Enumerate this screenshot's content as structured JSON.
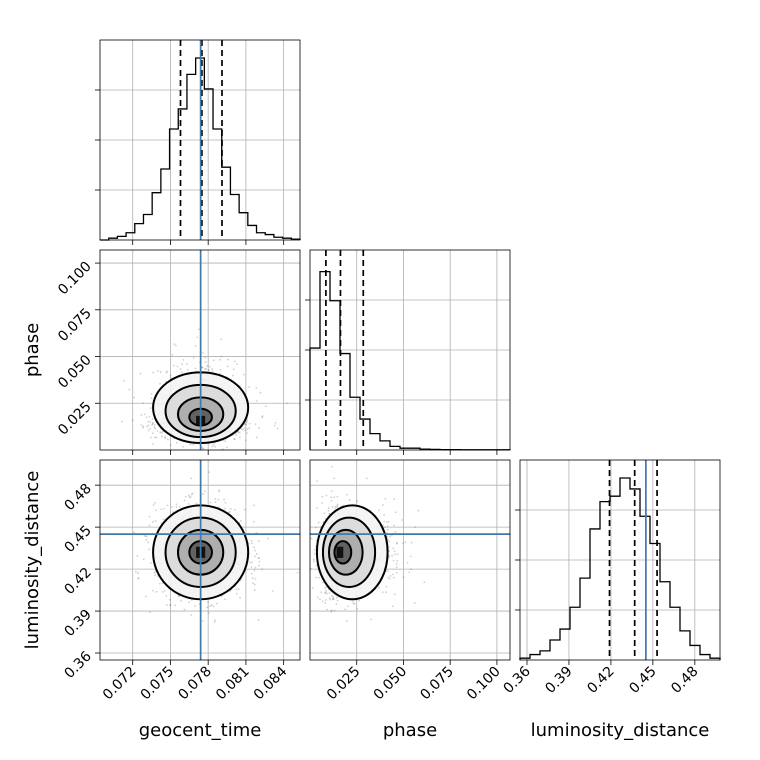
{
  "chart_data": {
    "type": "corner",
    "parameters": [
      "geocent_time",
      "phase",
      "luminosity_distance"
    ],
    "truths": {
      "geocent_time": 0.0774,
      "luminosity_distance": 0.445
    },
    "histograms": [
      {
        "parameter": "geocent_time",
        "range": [
          0.0694,
          0.0853
        ],
        "relative_counts": [
          0,
          0.01,
          0.02,
          0.04,
          0.09,
          0.14,
          0.26,
          0.39,
          0.61,
          0.72,
          0.91,
          1.0,
          0.83,
          0.61,
          0.4,
          0.25,
          0.15,
          0.08,
          0.04,
          0.03,
          0.015,
          0.01,
          0.005
        ],
        "quantiles": [
          0.0758,
          0.0775,
          0.0791
        ]
      },
      {
        "parameter": "phase",
        "range": [
          0,
          0.107
        ],
        "relative_counts": [
          0.56,
          0.98,
          0.82,
          0.53,
          0.29,
          0.17,
          0.09,
          0.05,
          0.02,
          0.01,
          0.01,
          0.005,
          0.003,
          0.002,
          0.002,
          0.001,
          0.001,
          0.001,
          0.001,
          0.001
        ],
        "quantiles": [
          0.0085,
          0.0163,
          0.0285
        ]
      },
      {
        "parameter": "luminosity_distance",
        "range": [
          0.355,
          0.498
        ],
        "relative_counts": [
          0.01,
          0.03,
          0.05,
          0.11,
          0.17,
          0.29,
          0.45,
          0.72,
          0.87,
          0.9,
          1.0,
          0.94,
          0.79,
          0.64,
          0.43,
          0.29,
          0.16,
          0.08,
          0.03,
          0.01
        ],
        "quantiles": [
          0.419,
          0.437,
          0.453
        ]
      }
    ],
    "axes": {
      "geocent_time": {
        "range": [
          0.0694,
          0.0853
        ],
        "ticks": [
          "0.072",
          "0.075",
          "0.078",
          "0.081",
          "0.084"
        ]
      },
      "phase": {
        "range": [
          0,
          0.107
        ],
        "ticks": [
          "0.025",
          "0.050",
          "0.075",
          "0.100"
        ]
      },
      "luminosity_distance": {
        "range": [
          0.355,
          0.498
        ],
        "ticks": [
          "0.36",
          "0.39",
          "0.42",
          "0.45",
          "0.48"
        ]
      }
    },
    "density_2d": [
      {
        "x": "geocent_time",
        "y": "phase",
        "peak": [
          0.0774,
          0.016
        ],
        "sigma": [
          0.0018,
          0.009
        ]
      },
      {
        "x": "geocent_time",
        "y": "luminosity_distance",
        "peak": [
          0.0774,
          0.432
        ],
        "sigma": [
          0.0018,
          0.016
        ]
      },
      {
        "x": "phase",
        "y": "luminosity_distance",
        "peak": [
          0.016,
          0.432
        ],
        "sigma": [
          0.009,
          0.016
        ]
      }
    ],
    "xlabel_bottom": [
      "geocent_time",
      "phase",
      "luminosity_distance"
    ],
    "ylabel_left": [
      "",
      "phase",
      "luminosity_distance"
    ],
    "grid": true
  }
}
